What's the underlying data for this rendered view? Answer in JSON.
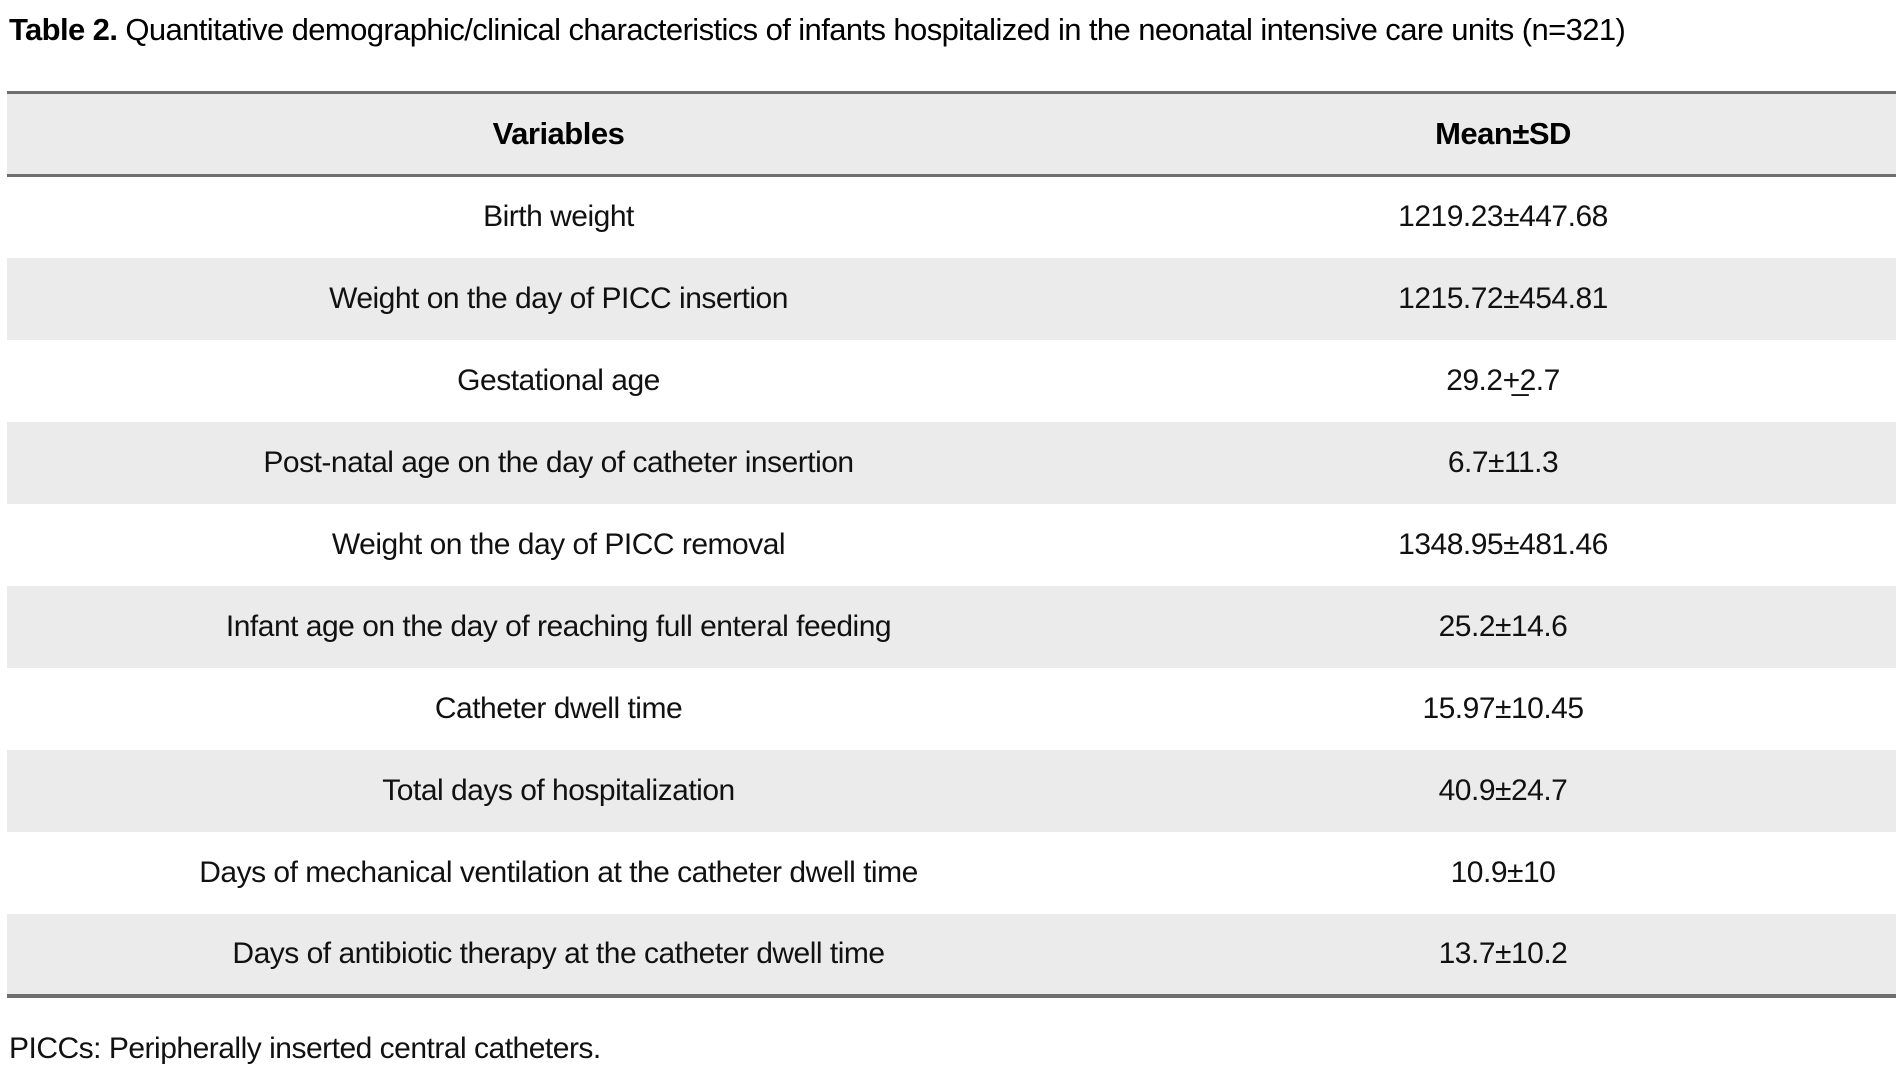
{
  "caption": {
    "label": "Table 2.",
    "text": " Quantitative demographic/clinical characteristics of infants hospitalized in the neonatal intensive care units (n=321)"
  },
  "table": {
    "columns": [
      "Variables",
      "Mean±SD"
    ],
    "rows": [
      {
        "variable": "Birth weight",
        "mean_sd": "1219.23±447.68"
      },
      {
        "variable": "Weight on the day of PICC insertion",
        "mean_sd": "1215.72±454.81"
      },
      {
        "variable": "Gestational age",
        "mean_sd": "29.2+̲2.7"
      },
      {
        "variable": "Post-natal age on the day of catheter insertion",
        "mean_sd": "6.7±11.3"
      },
      {
        "variable": "Weight on the day of PICC removal",
        "mean_sd": "1348.95±481.46"
      },
      {
        "variable": "Infant age on the day of reaching full enteral feeding",
        "mean_sd": "25.2±14.6"
      },
      {
        "variable": "Catheter dwell time",
        "mean_sd": "15.97±10.45"
      },
      {
        "variable": "Total days of hospitalization",
        "mean_sd": "40.9±24.7"
      },
      {
        "variable": "Days of mechanical ventilation at the catheter dwell time",
        "mean_sd": "10.9±10"
      },
      {
        "variable": "Days of antibiotic therapy at the catheter dwell time",
        "mean_sd": "13.7±10.2"
      }
    ]
  },
  "footnote": "PICCs: Peripherally inserted central catheters.",
  "colors": {
    "stripe": "#ebebeb",
    "rule": "#6e6e6e",
    "text": "#000000",
    "background": "#ffffff"
  }
}
